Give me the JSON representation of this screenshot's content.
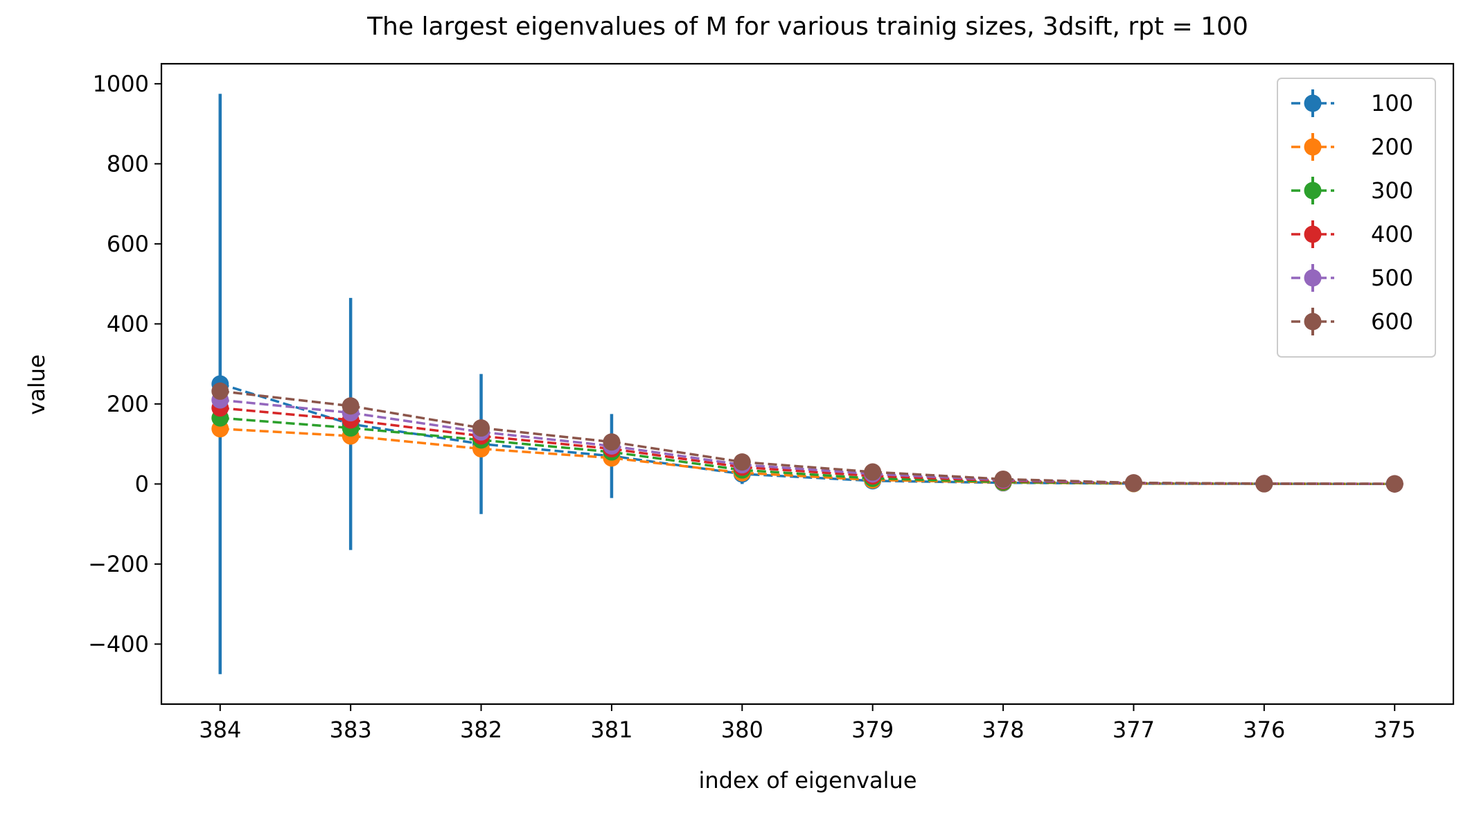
{
  "chart_data": {
    "type": "line",
    "title": "The largest eigenvalues of M for various trainig sizes, 3dsift, rpt = 100",
    "xlabel": "index of eigenvalue",
    "ylabel": "value",
    "x": [
      384,
      383,
      382,
      381,
      380,
      379,
      378,
      377,
      376,
      375
    ],
    "x_tick_labels": [
      "384",
      "383",
      "382",
      "381",
      "380",
      "379",
      "378",
      "377",
      "376",
      "375"
    ],
    "x_reversed": true,
    "xlim": [
      384.45,
      374.55
    ],
    "ylim": [
      -550,
      1050
    ],
    "y_ticks": [
      -400,
      -200,
      0,
      200,
      400,
      600,
      800,
      1000
    ],
    "y_tick_labels": [
      "−400",
      "−200",
      "0",
      "200",
      "400",
      "600",
      "800",
      "1000"
    ],
    "grid": false,
    "legend_position": "top-right",
    "series": [
      {
        "name": "100",
        "color": "#1f77b4",
        "values": [
          250,
          150,
          100,
          70,
          25,
          8,
          3,
          1,
          0.5,
          0.2
        ],
        "errors": [
          725,
          315,
          175,
          105,
          25,
          8,
          3,
          1,
          0.5,
          0.2
        ]
      },
      {
        "name": "200",
        "color": "#ff7f0e",
        "values": [
          138,
          120,
          88,
          65,
          28,
          10,
          4,
          1,
          0.5,
          0.2
        ],
        "errors": [
          0,
          0,
          0,
          0,
          0,
          0,
          0,
          0,
          0,
          0
        ]
      },
      {
        "name": "300",
        "color": "#2ca02c",
        "values": [
          165,
          140,
          110,
          80,
          35,
          14,
          5,
          1.5,
          0.6,
          0.2
        ],
        "errors": [
          0,
          0,
          0,
          0,
          0,
          0,
          0,
          0,
          0,
          0
        ]
      },
      {
        "name": "400",
        "color": "#d62728",
        "values": [
          190,
          160,
          120,
          88,
          42,
          20,
          8,
          2,
          0.8,
          0.3
        ],
        "errors": [
          0,
          0,
          0,
          0,
          0,
          0,
          0,
          0,
          0,
          0
        ]
      },
      {
        "name": "500",
        "color": "#9467bd",
        "values": [
          210,
          178,
          130,
          95,
          48,
          25,
          10,
          2.5,
          1,
          0.3
        ],
        "errors": [
          0,
          0,
          0,
          0,
          0,
          0,
          0,
          0,
          0,
          0
        ]
      },
      {
        "name": "600",
        "color": "#8c564b",
        "values": [
          232,
          195,
          140,
          105,
          55,
          30,
          12,
          3,
          1,
          0.4
        ],
        "errors": [
          0,
          0,
          0,
          0,
          0,
          0,
          0,
          0,
          0,
          0
        ]
      }
    ]
  }
}
